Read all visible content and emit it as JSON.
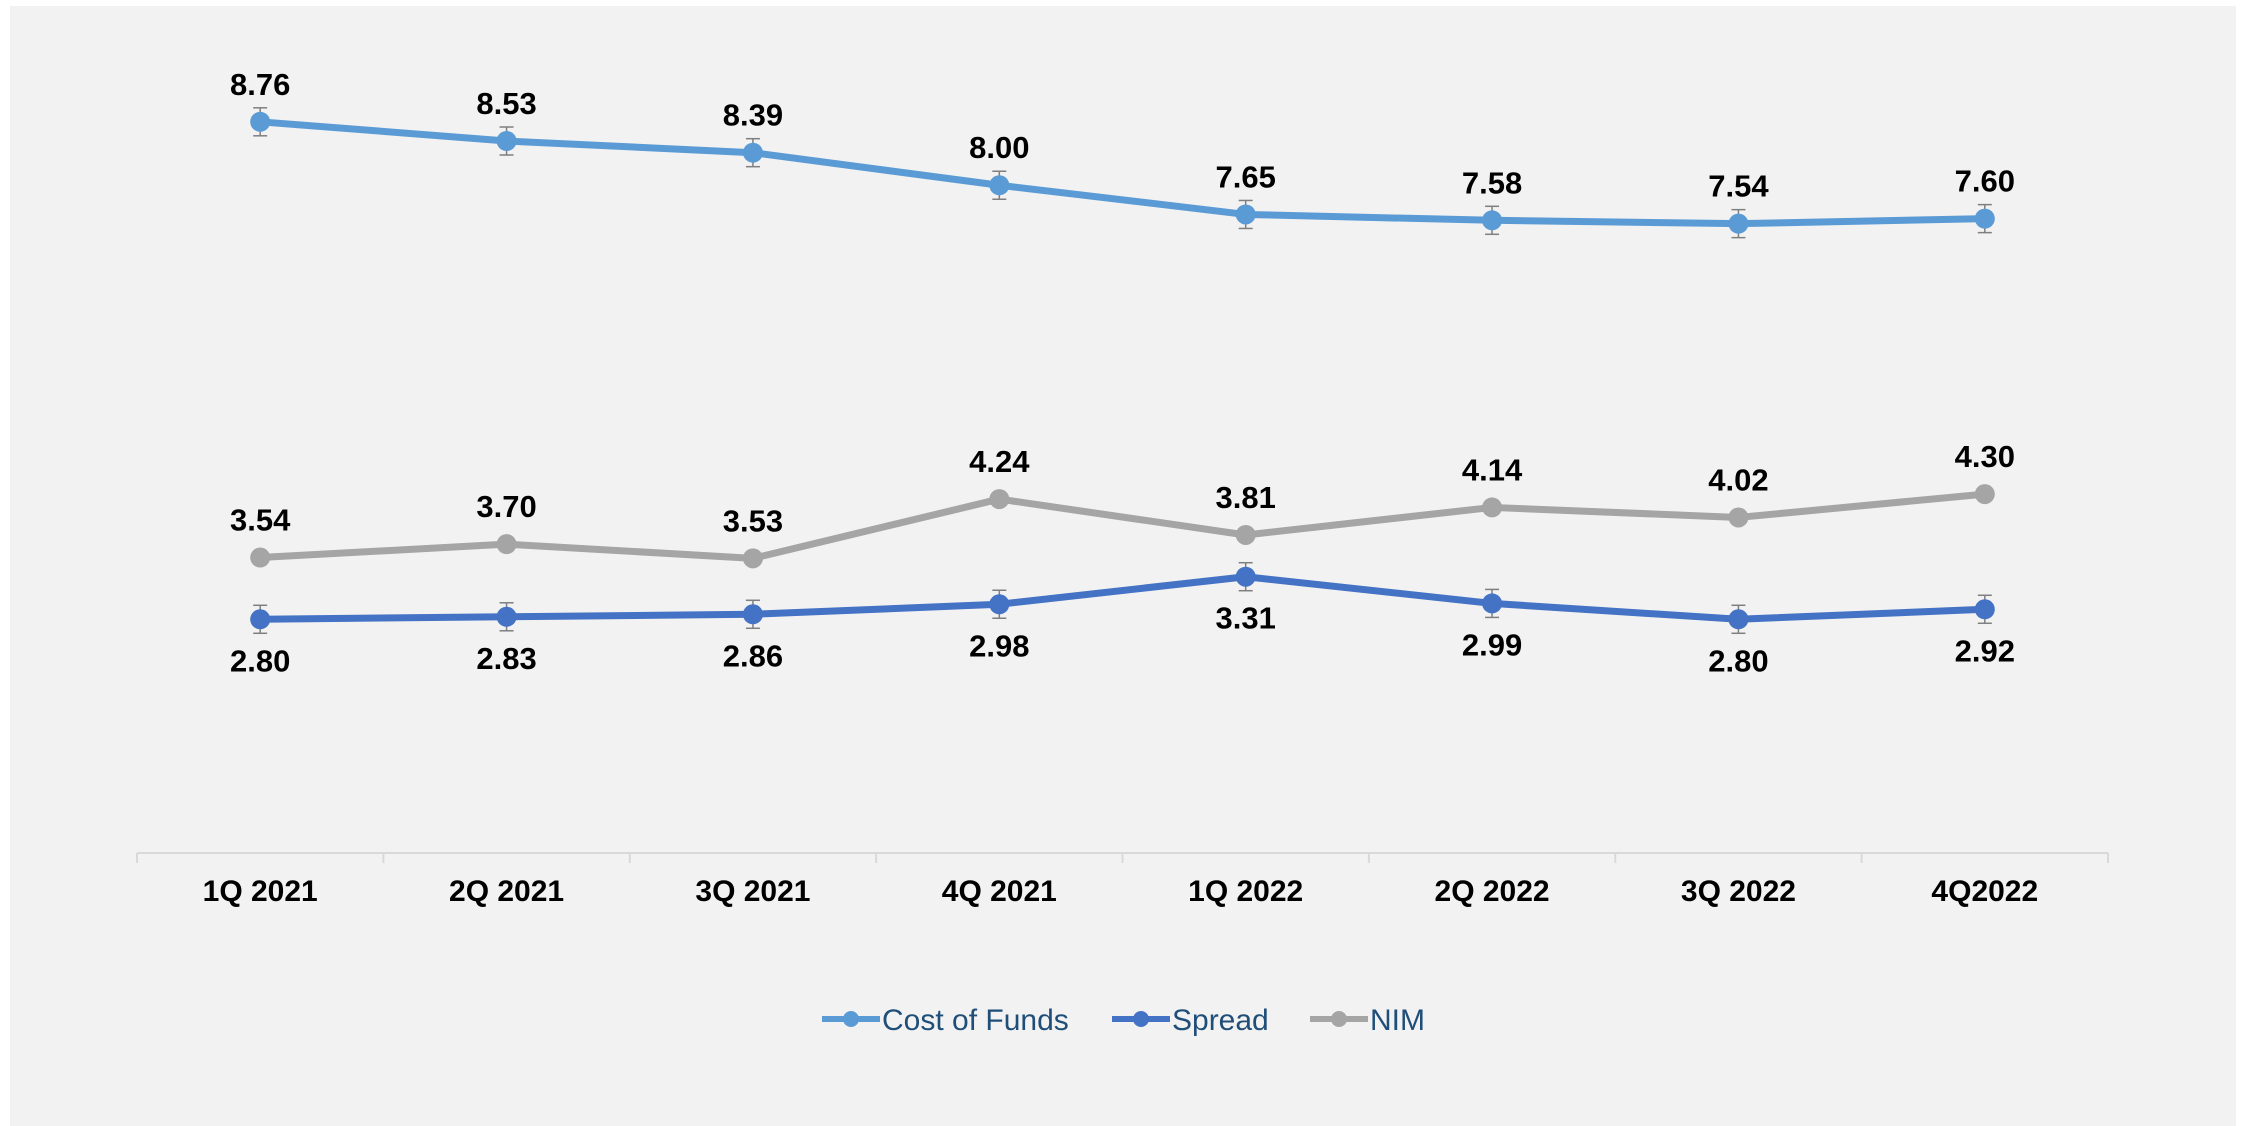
{
  "chart_data": {
    "type": "line",
    "categories": [
      "1Q 2021",
      "2Q 2021",
      "3Q 2021",
      "4Q 2021",
      "1Q 2022",
      "2Q 2022",
      "3Q 2022",
      "4Q2022"
    ],
    "series": [
      {
        "name": "Cost of Funds",
        "color": "#5b9bd5",
        "values": [
          8.76,
          8.53,
          8.39,
          8.0,
          7.65,
          7.58,
          7.54,
          7.6
        ],
        "labels": [
          "8.76",
          "8.53",
          "8.39",
          "8.00",
          "7.65",
          "7.58",
          "7.54",
          "7.60"
        ],
        "label_position": "above",
        "error_bars": true
      },
      {
        "name": "Spread",
        "color": "#4472c4",
        "values": [
          2.8,
          2.83,
          2.86,
          2.98,
          3.31,
          2.99,
          2.8,
          2.92
        ],
        "labels": [
          "2.80",
          "2.83",
          "2.86",
          "2.98",
          "3.31",
          "2.99",
          "2.80",
          "2.92"
        ],
        "label_position": "below",
        "error_bars": true
      },
      {
        "name": "NIM",
        "color": "#a5a5a5",
        "values": [
          3.54,
          3.7,
          3.53,
          4.24,
          3.81,
          4.14,
          4.02,
          4.3
        ],
        "labels": [
          "3.54",
          "3.70",
          "3.53",
          "4.24",
          "3.81",
          "4.14",
          "4.02",
          "4.30"
        ],
        "label_position": "above",
        "error_bars": false
      }
    ],
    "ylim": [
      0,
      9.8
    ],
    "grid": false,
    "legend": "bottom-center"
  }
}
